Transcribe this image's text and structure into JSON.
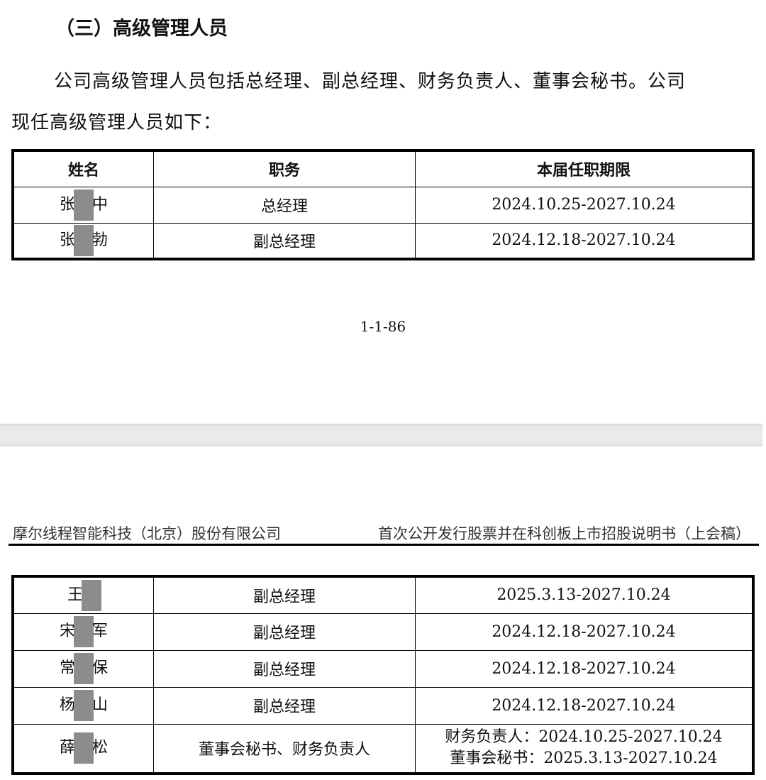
{
  "section_heading": "（三）高级管理人员",
  "intro_line1": "公司高级管理人员包括总经理、副总经理、财务负责人、董事会秘书。公司",
  "intro_line2": "现任高级管理人员如下：",
  "table_headers": [
    "姓名",
    "职务",
    "本届任职期限"
  ],
  "page1_rows": [
    {
      "name_first": "张",
      "name_last": "中",
      "position": "总经理",
      "term": "2024.10.25-2027.10.24"
    },
    {
      "name_first": "张",
      "name_last": "勃",
      "position": "副总经理",
      "term": "2024.12.18-2027.10.24"
    }
  ],
  "page_number": "1-1-86",
  "page_header": {
    "company": "摩尔线程智能科技（北京）股份有限公司",
    "document": "首次公开发行股票并在科创板上市招股说明书（上会稿）"
  },
  "page2_rows": [
    {
      "name_first": "王",
      "name_last": "",
      "position": "副总经理",
      "term": "2025.3.13-2027.10.24"
    },
    {
      "name_first": "宋",
      "name_last": "军",
      "position": "副总经理",
      "term": "2024.12.18-2027.10.24"
    },
    {
      "name_first": "常",
      "name_last": "保",
      "position": "副总经理",
      "term": "2024.12.18-2027.10.24"
    },
    {
      "name_first": "杨",
      "name_last": "山",
      "position": "副总经理",
      "term": "2024.12.18-2027.10.24"
    }
  ],
  "last_row": {
    "name_first": "薛",
    "name_last": "松",
    "position": "董事会秘书、财务负责人",
    "term_line1": "财务负责人：2024.10.25-2027.10.24",
    "term_line2": "董事会秘书：2025.3.13-2027.10.24"
  },
  "redaction_color": "#8c8c8c"
}
